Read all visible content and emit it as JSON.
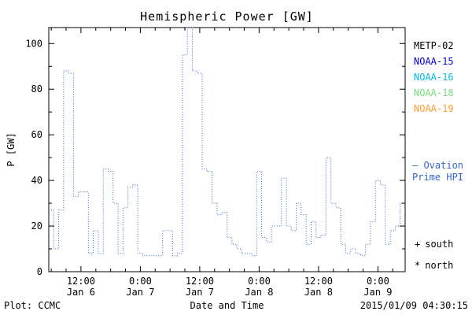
{
  "title": "Hemispheric Power [GW]",
  "axes": {
    "y_label": "P [GW]",
    "x_label": "Date and Time"
  },
  "footer": {
    "left": "Plot: CCMC",
    "right": "2015/01/09 04:30:15"
  },
  "legend": {
    "satellites": [
      {
        "label": "METP-02",
        "color": "#000000"
      },
      {
        "label": "NOAA-15",
        "color": "#0000dd"
      },
      {
        "label": "NOAA-16",
        "color": "#00bbee"
      },
      {
        "label": "NOAA-18",
        "color": "#77dd77"
      },
      {
        "label": "NOAA-19",
        "color": "#ff9933"
      }
    ],
    "model": {
      "line1": "– Ovation",
      "line2": "Prime HPI",
      "color": "#3366cc"
    },
    "markers": [
      {
        "symbol": "+",
        "label": "south"
      },
      {
        "symbol": "*",
        "label": "north"
      }
    ]
  },
  "chart_data": {
    "type": "line",
    "style": "dotted-step",
    "title": "Hemispheric Power [GW]",
    "xlabel": "Date and Time",
    "ylabel": "P [GW]",
    "xlim": [
      0,
      72
    ],
    "ylim": [
      0,
      107
    ],
    "x_unit": "hours, axis spans 2015-01-06 ~05:30 to 2015-01-09 ~05:30",
    "grid": false,
    "line_color": "#3366cc",
    "y_ticks": [
      0,
      20,
      40,
      60,
      80,
      100
    ],
    "x_ticks": [
      {
        "pos": 6.5,
        "time": "12:00",
        "date": "Jan 6"
      },
      {
        "pos": 18.5,
        "time": "0:00",
        "date": "Jan 7"
      },
      {
        "pos": 30.5,
        "time": "12:00",
        "date": "Jan 7"
      },
      {
        "pos": 42.5,
        "time": "0:00",
        "date": "Jan 8"
      },
      {
        "pos": 54.5,
        "time": "12:00",
        "date": "Jan 8"
      },
      {
        "pos": 66.5,
        "time": "0:00",
        "date": "Jan 9"
      }
    ],
    "series": [
      {
        "name": "Ovation Prime HPI",
        "x_step_hours": 1,
        "values": [
          27,
          10,
          27,
          88,
          87,
          33,
          35,
          35,
          8,
          18,
          8,
          45,
          44,
          30,
          8,
          28,
          37,
          38,
          8,
          7,
          7,
          7,
          7,
          18,
          18,
          7,
          8,
          95,
          107,
          88,
          87,
          45,
          44,
          30,
          25,
          26,
          15,
          12,
          10,
          8,
          8,
          7,
          44,
          15,
          13,
          20,
          20,
          41,
          20,
          18,
          30,
          25,
          12,
          22,
          15,
          16,
          50,
          30,
          28,
          12,
          8,
          10,
          8,
          7,
          12,
          22,
          40,
          38,
          12,
          18,
          20,
          30
        ]
      }
    ]
  }
}
